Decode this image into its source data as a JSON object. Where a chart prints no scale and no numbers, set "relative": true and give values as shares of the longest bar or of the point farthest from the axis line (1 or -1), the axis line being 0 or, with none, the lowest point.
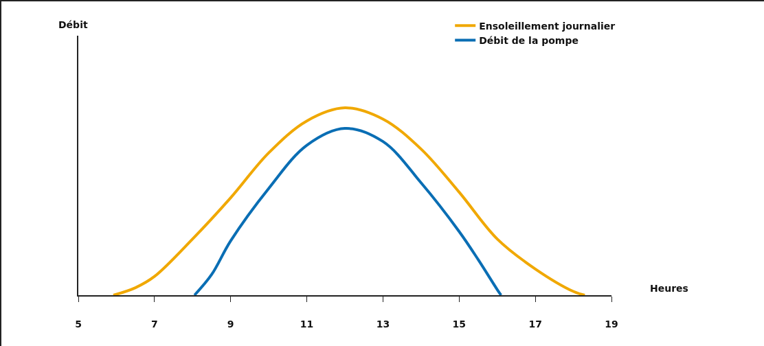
{
  "chart_data": {
    "type": "line",
    "relative": true,
    "xlabel": "Heures",
    "annotations": [
      "Débit"
    ],
    "xlim": [
      5,
      19
    ],
    "xticks": [
      5,
      7,
      9,
      11,
      13,
      15,
      17,
      19
    ],
    "legend": "top right",
    "grid": false,
    "marker": "none",
    "line_style": "solid",
    "series": [
      {
        "name": "Ensoleillement journalier",
        "color": "#f0a800",
        "x": [
          5.92,
          6.5,
          7,
          8,
          9,
          10,
          11,
          12,
          13,
          14,
          15,
          16,
          17,
          18,
          18.3
        ],
        "values": [
          0,
          0.04,
          0.1,
          0.3,
          0.52,
          0.76,
          0.93,
          1,
          0.94,
          0.78,
          0.55,
          0.3,
          0.14,
          0.02,
          0
        ]
      },
      {
        "name": "Débit de la pompe",
        "color": "#0a6eb4",
        "x": [
          8.05,
          8.5,
          9,
          10,
          11,
          12,
          13,
          14,
          15,
          15.5,
          16,
          16.1
        ],
        "values": [
          0,
          0.11,
          0.29,
          0.57,
          0.8,
          0.89,
          0.82,
          0.6,
          0.34,
          0.19,
          0.03,
          0
        ]
      }
    ]
  }
}
